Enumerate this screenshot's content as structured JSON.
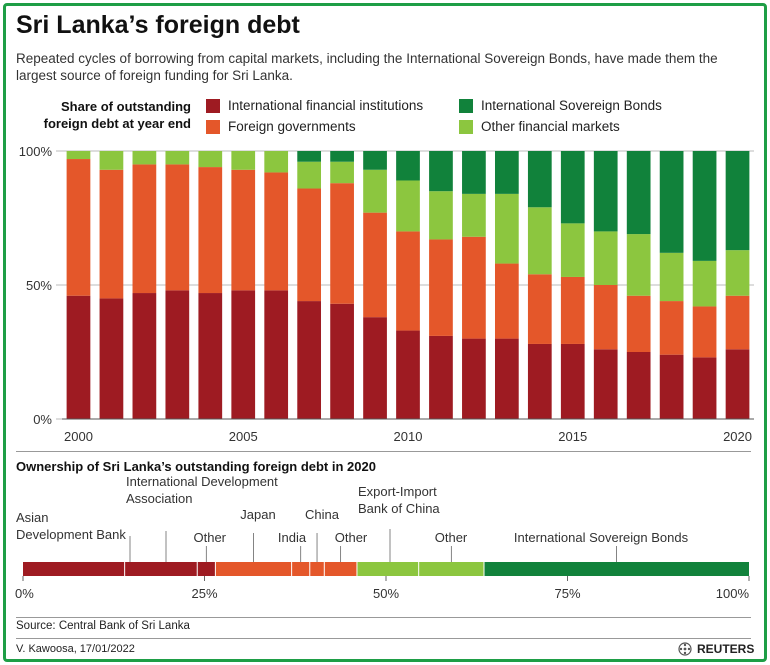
{
  "title": "Sri Lanka’s foreign debt",
  "subtitle": "Repeated cycles of borrowing from capital markets, including the International Sovereign Bonds, have made them the largest source of foreign funding for Sri Lanka.",
  "legend_title_line1": "Share of outstanding",
  "legend_title_line2": "foreign debt at year end",
  "colors": {
    "ifi": "#9e1b22",
    "fg": "#e4572a",
    "isb": "#11823b",
    "ofm": "#8cc63f",
    "frame": "#1e9e46"
  },
  "section2_title": "Ownership of Sri Lanka’s outstanding foreign debt in 2020",
  "source": "Source: Central Bank of Sri Lanka",
  "author": "V. Kawoosa, 17/01/2022",
  "brand": "REUTERS",
  "chart_data": [
    {
      "type": "bar",
      "stacked": true,
      "x": [
        2000,
        2001,
        2002,
        2003,
        2004,
        2005,
        2006,
        2007,
        2008,
        2009,
        2010,
        2011,
        2012,
        2013,
        2014,
        2015,
        2016,
        2017,
        2018,
        2019,
        2020
      ],
      "x_tick_labels": [
        "2000",
        "2005",
        "2010",
        "2015",
        "2020"
      ],
      "x_tick_values": [
        2000,
        2005,
        2010,
        2015,
        2020
      ],
      "y_tick_labels": [
        "0%",
        "50%",
        "100%"
      ],
      "y_tick_values": [
        0,
        50,
        100
      ],
      "ylim": [
        0,
        100
      ],
      "series": [
        {
          "name": "International financial institutions",
          "key": "ifi",
          "values": [
            46,
            45,
            47,
            48,
            47,
            48,
            48,
            44,
            43,
            38,
            33,
            31,
            30,
            30,
            28,
            28,
            26,
            25,
            24,
            23,
            26
          ]
        },
        {
          "name": "Foreign governments",
          "key": "fg",
          "values": [
            51,
            48,
            48,
            47,
            47,
            45,
            44,
            42,
            45,
            39,
            37,
            36,
            38,
            28,
            26,
            25,
            24,
            21,
            20,
            19,
            20
          ]
        },
        {
          "name": "Other financial markets",
          "key": "ofm",
          "values": [
            3,
            7,
            5,
            5,
            6,
            7,
            8,
            10,
            8,
            16,
            19,
            18,
            16,
            26,
            25,
            20,
            20,
            23,
            18,
            17,
            17
          ]
        },
        {
          "name": "International Sovereign Bonds",
          "key": "isb",
          "values": [
            0,
            0,
            0,
            0,
            0,
            0,
            0,
            4,
            4,
            7,
            11,
            15,
            16,
            16,
            21,
            27,
            30,
            31,
            38,
            41,
            37
          ]
        }
      ],
      "grid": false,
      "legend": "top"
    },
    {
      "type": "bar",
      "orientation": "horizontal",
      "stacked": true,
      "xlim": [
        0,
        100
      ],
      "x_tick_labels": [
        "0%",
        "25%",
        "50%",
        "75%",
        "100%"
      ],
      "x_tick_values": [
        0,
        25,
        50,
        75,
        100
      ],
      "segments": [
        {
          "label_line1": "Asian",
          "label_line2": "Development Bank",
          "value": 14,
          "color": "ifi"
        },
        {
          "label_line1": "International Development",
          "label_line2": "Association",
          "value": 10,
          "color": "ifi"
        },
        {
          "label_line1": "Other",
          "label_line2": "",
          "value": 2.5,
          "color": "ifi"
        },
        {
          "label_line1": "Japan",
          "label_line2": "",
          "value": 10.5,
          "color": "fg"
        },
        {
          "label_line1": "India",
          "label_line2": "",
          "value": 2.5,
          "color": "fg"
        },
        {
          "label_line1": "China",
          "label_line2": "",
          "value": 2,
          "color": "fg"
        },
        {
          "label_line1": "Other",
          "label_line2": "",
          "value": 4.5,
          "color": "fg"
        },
        {
          "label_line1": "Export-Import",
          "label_line2": "Bank of China",
          "value": 8.5,
          "color": "ofm"
        },
        {
          "label_line1": "Other",
          "label_line2": "",
          "value": 9,
          "color": "ofm"
        },
        {
          "label_line1": "International Sovereign Bonds",
          "label_line2": "",
          "value": 36.5,
          "color": "isb"
        }
      ]
    }
  ]
}
